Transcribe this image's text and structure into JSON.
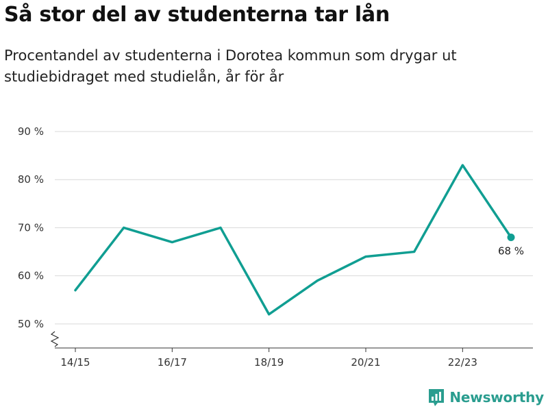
{
  "header": {
    "title": "Så stor del av studenterna tar lån",
    "subtitle": "Procentandel av studenterna i Dorotea kommun som drygar ut studiebidraget med studielån, år för år"
  },
  "brand": {
    "name": "Newsworthy",
    "logo_icon": "newsworthy-chart-icon",
    "color": "#2a9d8f"
  },
  "chart_data": {
    "type": "line",
    "x": [
      "14/15",
      "15/16",
      "16/17",
      "17/18",
      "18/19",
      "19/20",
      "20/21",
      "21/22",
      "22/23",
      "23/24"
    ],
    "x_tick_labels": [
      "14/15",
      "",
      "16/17",
      "",
      "18/19",
      "",
      "20/21",
      "",
      "22/23",
      ""
    ],
    "series": [
      {
        "values": [
          57,
          70,
          67,
          70,
          52,
          59,
          64,
          65,
          83,
          68
        ],
        "color": "#109e92"
      }
    ],
    "y_ticks": [
      50,
      60,
      70,
      80,
      90
    ],
    "y_tick_labels": [
      "50 %",
      "60 %",
      "70 %",
      "80 %",
      "90 %"
    ],
    "ylim": [
      45,
      90
    ],
    "y_axis_break": true,
    "grid": "horizontal",
    "end_label": "68 %",
    "xlabel": "",
    "ylabel": ""
  }
}
